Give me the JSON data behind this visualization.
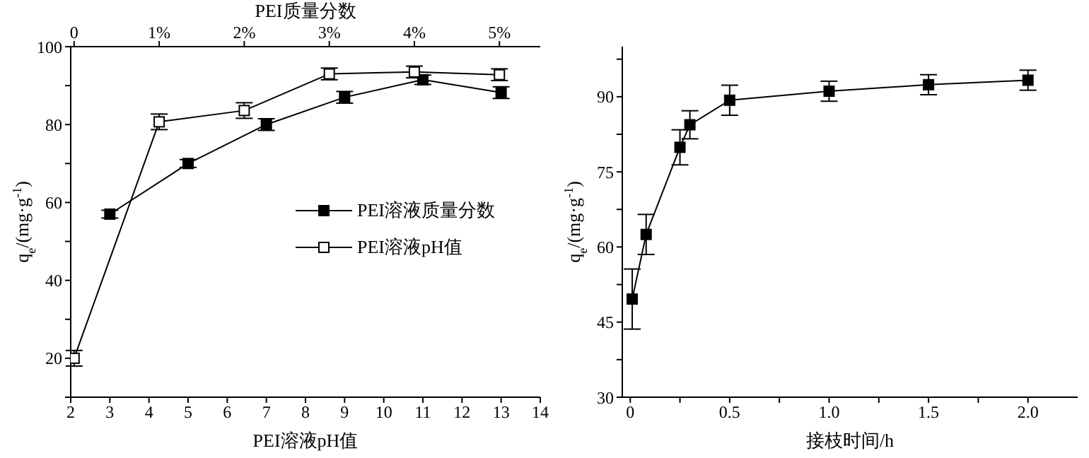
{
  "chart_data": [
    {
      "type": "line",
      "xlabel": "PEI溶液pH值",
      "x2label": "PEI质量分数",
      "ylabel": "q$_{e}$/(mg·g$^{-1}$)",
      "xlim": [
        2,
        14
      ],
      "xticks": [
        2,
        3,
        4,
        5,
        6,
        7,
        8,
        9,
        10,
        11,
        12,
        13,
        14
      ],
      "x2lim": [
        -0.04,
        5.48
      ],
      "x2ticks": [
        0,
        {
          "value": 1,
          "label": "1%"
        },
        {
          "value": 2,
          "label": "2%"
        },
        {
          "value": 3,
          "label": "3%"
        },
        {
          "value": 4,
          "label": "4%"
        },
        {
          "value": 5,
          "label": "5%"
        }
      ],
      "ylim": [
        10,
        100
      ],
      "yticks": [
        {
          "value": 10,
          "label": null
        },
        20,
        {
          "value": 30,
          "label": null
        },
        40,
        {
          "value": 50,
          "label": null
        },
        60,
        {
          "value": 70,
          "label": null
        },
        80,
        {
          "value": 90,
          "label": null
        },
        100
      ],
      "legend": "right",
      "line_style": "solid",
      "series": [
        {
          "name": "PEI溶液质量分数",
          "color": "#000000",
          "marker": "square",
          "x": [
            3,
            5,
            7,
            9,
            11,
            13
          ],
          "values": [
            57,
            70,
            80,
            87,
            91.5,
            88.2
          ],
          "errors": [
            1,
            1,
            1.5,
            1.5,
            1.2,
            1.5
          ]
        },
        {
          "name": "PEI溶液pH值",
          "color": "#000000",
          "marker": "square-open",
          "axis": "x2",
          "x": [
            0,
            1,
            2,
            3,
            4,
            5
          ],
          "values": [
            20,
            80.7,
            83.6,
            93,
            93.5,
            92.8
          ],
          "errors": [
            2,
            2,
            2,
            1.5,
            1.5,
            1.5
          ]
        }
      ]
    },
    {
      "type": "line",
      "xlabel": "接枝时间/h",
      "ylabel": "q$_{e}$/(mg·g$^{-1}$)",
      "xlim": [
        -0.04,
        2.25
      ],
      "xticks": [
        0,
        {
          "value": 0.25,
          "label": null
        },
        0.5,
        {
          "value": 0.75,
          "label": null
        },
        {
          "value": 1,
          "label": "1.0"
        },
        {
          "value": 1.25,
          "label": null
        },
        {
          "value": 1.5,
          "label": "1.5"
        },
        {
          "value": 1.75,
          "label": null
        },
        {
          "value": 2,
          "label": "2.0"
        }
      ],
      "ylim": [
        30,
        100
      ],
      "yticks": [
        30,
        {
          "value": 37.5,
          "label": null
        },
        45,
        {
          "value": 52.5,
          "label": null
        },
        60,
        {
          "value": 67.5,
          "label": null
        },
        75,
        {
          "value": 82.5,
          "label": null
        },
        90,
        {
          "value": 97.5,
          "label": null
        }
      ],
      "line_style": "solid",
      "series": [
        {
          "color": "#000000",
          "marker": "square",
          "x": [
            0.01,
            0.08,
            0.25,
            0.3,
            0.5,
            1,
            1.5,
            2
          ],
          "values": [
            49.6,
            62.5,
            79.9,
            84.4,
            89.3,
            91.1,
            92.4,
            93.3
          ],
          "errors": [
            6,
            4,
            3.5,
            2.8,
            3,
            2,
            2,
            2
          ]
        }
      ]
    }
  ]
}
